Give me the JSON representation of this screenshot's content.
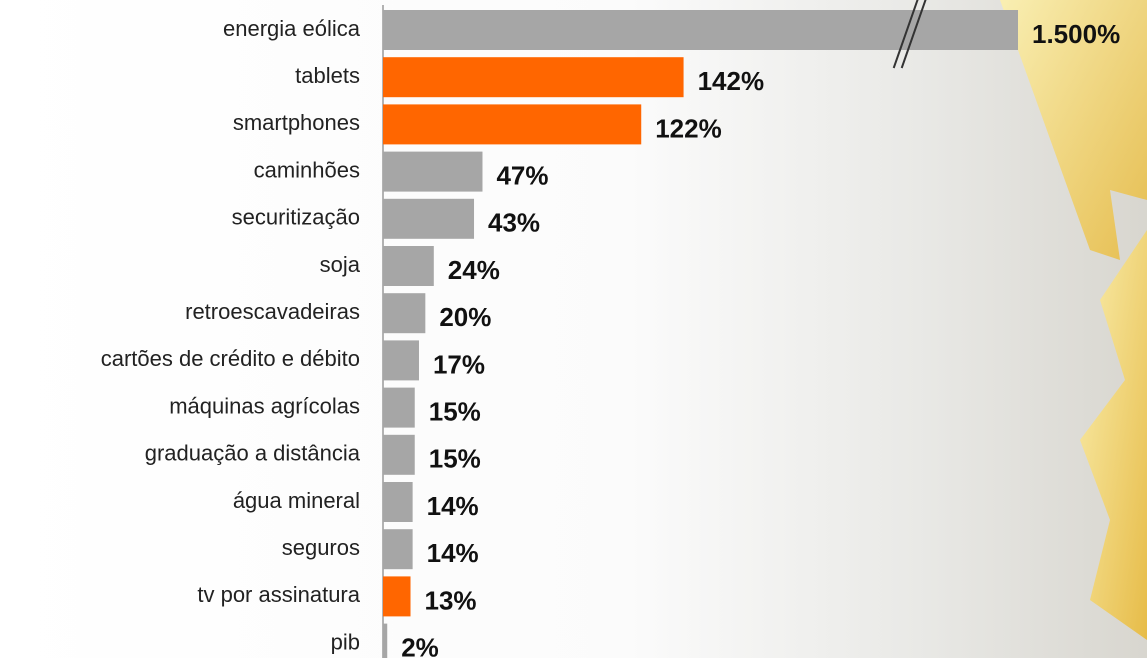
{
  "chart_data": {
    "type": "barh",
    "categories": [
      "energia eólica",
      "tablets",
      "smartphones",
      "caminhões",
      "securitização",
      "soja",
      "retroescavadeiras",
      "cartões de crédito e débito",
      "máquinas agrícolas",
      "graduação a distância",
      "água mineral",
      "seguros",
      "tv por assinatura",
      "pib"
    ],
    "values": [
      1500,
      142,
      122,
      47,
      43,
      24,
      20,
      17,
      15,
      15,
      14,
      14,
      13,
      2
    ],
    "value_labels": [
      "1.500%",
      "142%",
      "122%",
      "47%",
      "43%",
      "24%",
      "20%",
      "17%",
      "15%",
      "15%",
      "14%",
      "14%",
      "13%",
      "2%"
    ],
    "colors": [
      "#a6a6a6",
      "#ff6600",
      "#ff6600",
      "#a6a6a6",
      "#a6a6a6",
      "#a6a6a6",
      "#a6a6a6",
      "#a6a6a6",
      "#a6a6a6",
      "#a6a6a6",
      "#a6a6a6",
      "#a6a6a6",
      "#ff6600",
      "#a6a6a6"
    ],
    "xlim": [
      0,
      300
    ]
  }
}
